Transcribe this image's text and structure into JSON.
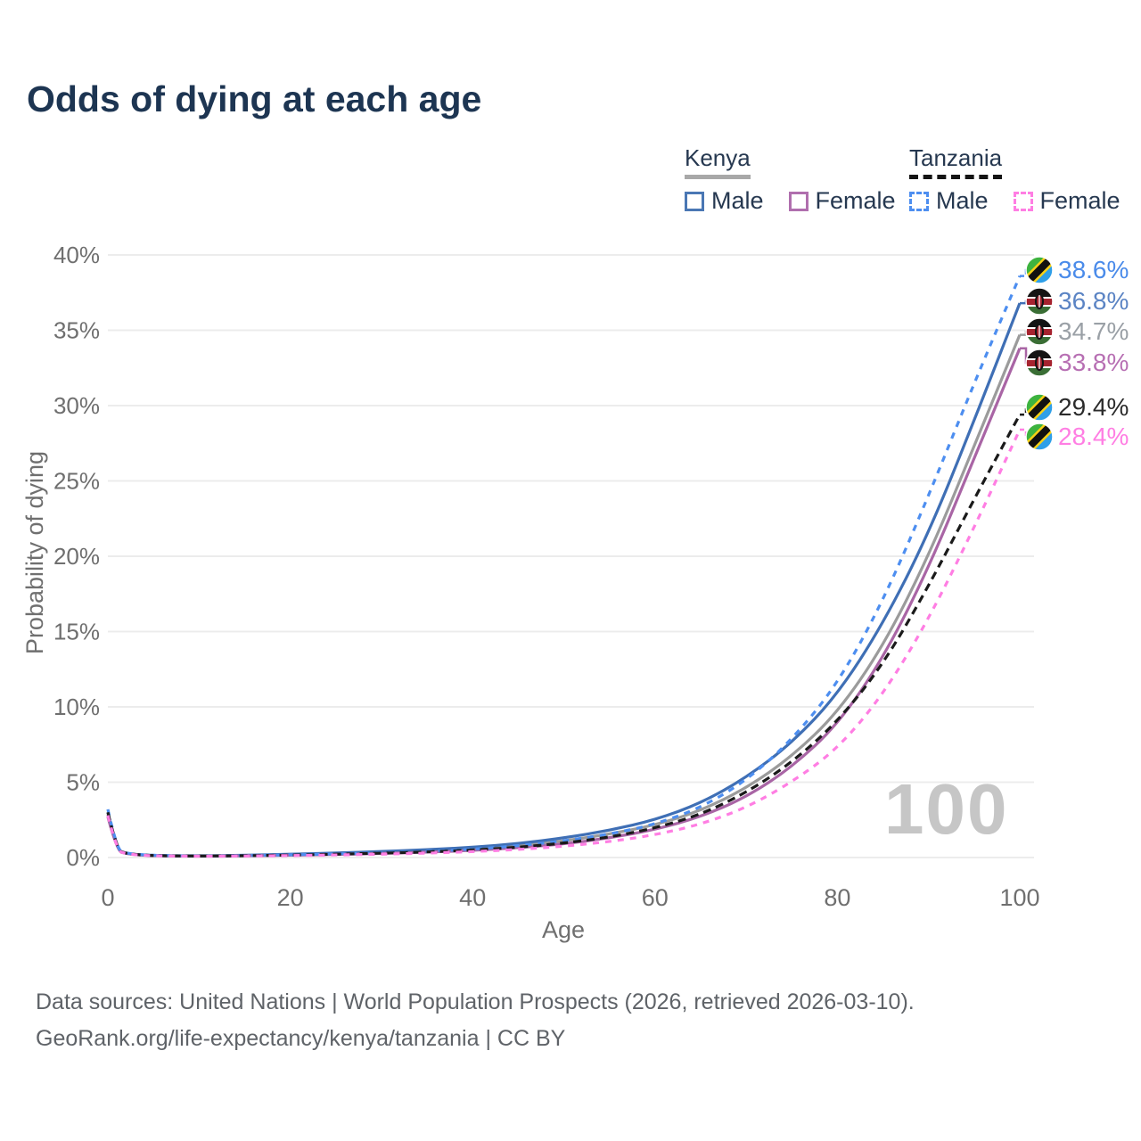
{
  "title": "Odds of dying at each age",
  "watermark": "100",
  "legend": {
    "kenya": {
      "label": "Kenya",
      "male": "Male",
      "female": "Female"
    },
    "tanzania": {
      "label": "Tanzania",
      "male": "Male",
      "female": "Female"
    }
  },
  "footer": {
    "line1": "Data sources: United Nations | World Population Prospects (2026, retrieved 2026-03-10).",
    "line2": "GeoRank.org/life-expectancy/kenya/tanzania | CC BY"
  },
  "colors": {
    "title_text": "#1d3552",
    "kenya_male": "#3f6fb5",
    "kenya_female": "#a965a5",
    "kenya_total": "#9b9b9b",
    "tanzania_male": "#4d8ef0",
    "tanzania_female": "#ff7ee3",
    "tanzania_total": "#1a1a1a",
    "gridline": "#ececec",
    "tick_text": "#6f6f6f",
    "watermark_text": "#c6c6c6"
  },
  "chart_data": {
    "type": "line",
    "title": "Odds of dying at each age",
    "xlabel": "Age",
    "ylabel": "Probability of dying",
    "xlim": [
      0,
      100
    ],
    "ylim": [
      0,
      40
    ],
    "grid": "horizontal",
    "legend_position": "top-right",
    "x_ticks": [
      0,
      20,
      40,
      60,
      80,
      100
    ],
    "x_tick_labels": [
      "0",
      "20",
      "40",
      "60",
      "80",
      "100"
    ],
    "y_ticks": [
      0,
      5,
      10,
      15,
      20,
      25,
      30,
      35,
      40
    ],
    "y_tick_labels": [
      "0%",
      "5%",
      "10%",
      "15%",
      "20%",
      "25%",
      "30%",
      "35%",
      "40%"
    ],
    "x": [
      0,
      1,
      2,
      3,
      5,
      10,
      15,
      20,
      25,
      30,
      35,
      40,
      45,
      50,
      55,
      60,
      65,
      70,
      75,
      80,
      85,
      90,
      95,
      100
    ],
    "series": [
      {
        "name": "Kenya",
        "flag": "kenya",
        "style": "solid",
        "color": "#9b9b9b",
        "end_label": "34.7%",
        "label_color": "#9aa0a6",
        "values": [
          2.85,
          0.45,
          0.27,
          0.2,
          0.12,
          0.1,
          0.13,
          0.18,
          0.25,
          0.33,
          0.43,
          0.57,
          0.78,
          1.1,
          1.55,
          2.15,
          3.1,
          4.6,
          6.7,
          9.6,
          14.0,
          20.0,
          27.3,
          34.7
        ]
      },
      {
        "name": "Kenya Male",
        "flag": "kenya",
        "style": "solid",
        "color": "#3f6fb5",
        "end_label": "36.8%",
        "label_color": "#5b84c4",
        "values": [
          3.0,
          0.48,
          0.29,
          0.21,
          0.13,
          0.11,
          0.15,
          0.22,
          0.3,
          0.4,
          0.52,
          0.68,
          0.92,
          1.3,
          1.8,
          2.5,
          3.6,
          5.3,
          7.6,
          10.8,
          15.5,
          21.5,
          29.0,
          36.8
        ]
      },
      {
        "name": "Kenya Female",
        "flag": "kenya",
        "style": "solid",
        "color": "#a965a5",
        "end_label": "33.8%",
        "label_color": "#b76fb3",
        "values": [
          2.7,
          0.42,
          0.26,
          0.19,
          0.11,
          0.09,
          0.11,
          0.15,
          0.2,
          0.27,
          0.35,
          0.47,
          0.65,
          0.9,
          1.3,
          1.85,
          2.7,
          4.0,
          6.0,
          8.8,
          13.2,
          19.2,
          26.5,
          33.8
        ]
      },
      {
        "name": "Tanzania Male",
        "flag": "tanzania",
        "style": "dashed",
        "color": "#4d8ef0",
        "end_label": "38.6%",
        "label_color": "#4a8bea",
        "values": [
          3.2,
          0.5,
          0.3,
          0.22,
          0.14,
          0.1,
          0.13,
          0.18,
          0.24,
          0.31,
          0.4,
          0.55,
          0.78,
          1.1,
          1.55,
          2.2,
          3.3,
          5.1,
          7.8,
          11.5,
          17.0,
          24.0,
          31.5,
          38.6
        ]
      },
      {
        "name": "Tanzania",
        "flag": "tanzania",
        "style": "dashed",
        "color": "#1a1a1a",
        "end_label": "29.4%",
        "label_color": "#2b2b2b",
        "values": [
          3.0,
          0.47,
          0.28,
          0.2,
          0.12,
          0.1,
          0.12,
          0.16,
          0.22,
          0.29,
          0.37,
          0.49,
          0.68,
          0.95,
          1.35,
          1.95,
          2.85,
          4.3,
          6.3,
          9.0,
          12.8,
          18.0,
          23.8,
          29.4
        ]
      },
      {
        "name": "Tanzania Female",
        "flag": "tanzania",
        "style": "dashed",
        "color": "#ff7ee3",
        "end_label": "28.4%",
        "label_color": "#ff7ee3",
        "values": [
          2.8,
          0.44,
          0.26,
          0.18,
          0.11,
          0.08,
          0.1,
          0.13,
          0.17,
          0.22,
          0.29,
          0.39,
          0.53,
          0.75,
          1.05,
          1.5,
          2.2,
          3.3,
          5.0,
          7.2,
          10.8,
          15.8,
          21.9,
          28.4
        ]
      }
    ],
    "end_label_order": [
      "Tanzania Male",
      "Kenya Male",
      "Kenya",
      "Kenya Female",
      "Tanzania",
      "Tanzania Female"
    ]
  }
}
